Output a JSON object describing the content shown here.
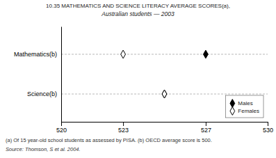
{
  "chart_data": {
    "type": "dot",
    "title": "10.35   MATHEMATICS AND SCIENCE LITERACY AVERAGE SCORES(a),",
    "subtitle": "Australian students — 2003",
    "orientation": "horizontal",
    "categories": [
      "Mathematics(b)",
      "Science(b)"
    ],
    "series": [
      {
        "name": "Males",
        "color": "black",
        "marker": "diamond",
        "values": [
          527,
          525
        ]
      },
      {
        "name": "Females",
        "color": "black",
        "marker": "diamond-open",
        "values": [
          523,
          525
        ]
      }
    ],
    "xlim": [
      520,
      530
    ],
    "xticks": [
      520,
      523,
      527,
      530
    ],
    "grid": true,
    "legend": "lower right",
    "annotations": [
      "(a) Of 15 year-old school students as assessed by PISA.  (b) OECD average score is 500.",
      "Source: Thomson, S et al.  2004."
    ]
  }
}
